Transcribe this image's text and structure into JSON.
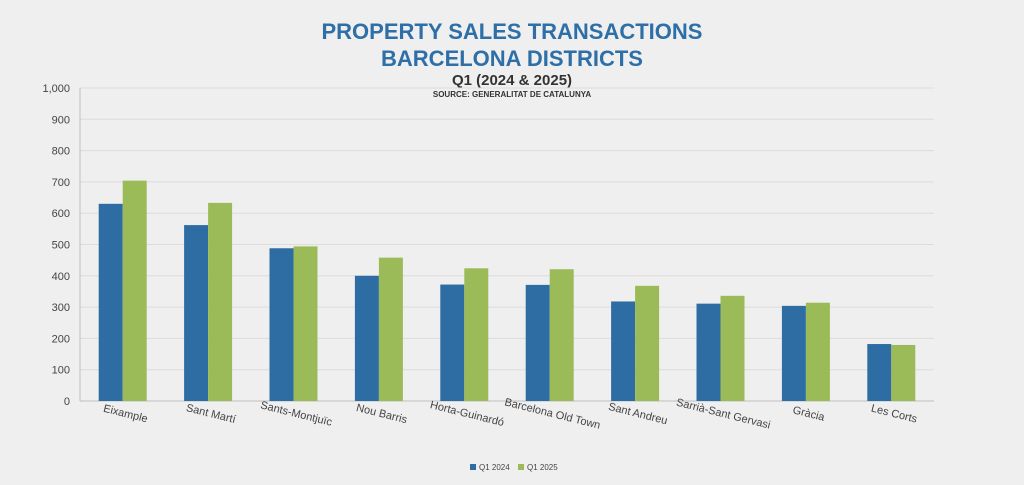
{
  "chart_data": {
    "type": "bar",
    "title": [
      "PROPERTY SALES TRANSACTIONS",
      "BARCELONA DISTRICTS"
    ],
    "subtitle": "Q1 (2024 & 2025)",
    "source": "SOURCE: GENERALITAT DE CATALUNYA",
    "xlabel": "",
    "ylabel": "",
    "ylim": [
      0,
      1000
    ],
    "yticks": [
      "0",
      "100",
      "200",
      "300",
      "400",
      "500",
      "600",
      "700",
      "800",
      "900",
      "1,000"
    ],
    "grid": true,
    "legend_position": "bottom",
    "categories": [
      "Eixample",
      "Sant Martí",
      "Sants-Montjuïc",
      "Nou Barris",
      "Horta-Guinardó",
      "Barcelona Old Town",
      "Sant Andreu",
      "Sarrià-Sant Gervasi",
      "Gràcia",
      "Les Corts"
    ],
    "series": [
      {
        "name": "Q1 2024",
        "color": "#2e6da4",
        "values": [
          630,
          562,
          488,
          400,
          372,
          371,
          318,
          311,
          304,
          182
        ]
      },
      {
        "name": "Q1 2025",
        "color": "#9bbb59",
        "values": [
          704,
          633,
          494,
          458,
          424,
          421,
          368,
          336,
          314,
          179
        ]
      }
    ]
  }
}
